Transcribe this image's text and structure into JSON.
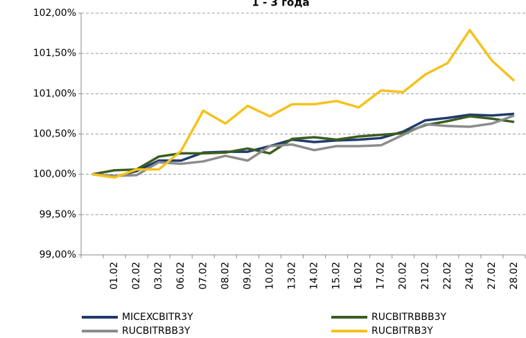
{
  "chart_data": {
    "type": "line",
    "title": "1 - 3 года",
    "categories": [
      null,
      "01.02",
      "02.02",
      "03.02",
      "06.02",
      "07.02",
      "08.02",
      "09.02",
      "10.02",
      "13.02",
      "14.02",
      "15.02",
      "16.02",
      "17.02",
      "20.02",
      "21.02",
      "22.02",
      "24.02",
      "27.02",
      "28.02"
    ],
    "series": [
      {
        "name": "MICEXCBITR3Y",
        "color": "#1f3a6e",
        "values": [
          100.0,
          99.97,
          100.04,
          100.17,
          100.17,
          100.27,
          100.28,
          100.28,
          100.35,
          100.43,
          100.4,
          100.42,
          100.43,
          100.45,
          100.53,
          100.67,
          100.7,
          100.74,
          100.73,
          100.75
        ]
      },
      {
        "name": "RUCBITRBBB3Y",
        "color": "#3b5e1f",
        "values": [
          100.0,
          100.05,
          100.06,
          100.22,
          100.26,
          100.26,
          100.27,
          100.32,
          100.26,
          100.44,
          100.46,
          100.43,
          100.47,
          100.49,
          100.51,
          100.61,
          100.66,
          100.72,
          100.69,
          100.65
        ]
      },
      {
        "name": "RUCBITRBB3Y",
        "color": "#8c8c8c",
        "values": [
          100.0,
          99.98,
          99.99,
          100.15,
          100.13,
          100.16,
          100.23,
          100.17,
          100.35,
          100.37,
          100.3,
          100.35,
          100.35,
          100.36,
          100.49,
          100.62,
          100.6,
          100.59,
          100.63,
          100.73
        ]
      },
      {
        "name": "RUCBITRB3Y",
        "color": "#f5c21b",
        "values": [
          100.0,
          99.96,
          100.06,
          100.06,
          100.29,
          100.79,
          100.63,
          100.85,
          100.72,
          100.87,
          100.87,
          100.91,
          100.83,
          101.04,
          101.02,
          101.24,
          101.38,
          101.79,
          101.41,
          101.16
        ]
      }
    ],
    "ylim": [
      99,
      102
    ],
    "yticks": [
      {
        "value": 99,
        "label": "99,00%"
      },
      {
        "value": 99.5,
        "label": "99,50%"
      },
      {
        "value": 100,
        "label": "100,00%"
      },
      {
        "value": 100.5,
        "label": "100,50%"
      },
      {
        "value": 101,
        "label": "101,00%"
      },
      {
        "value": 101.5,
        "label": "101,50%"
      },
      {
        "value": 102,
        "label": "102,00%"
      }
    ],
    "grid": true
  }
}
